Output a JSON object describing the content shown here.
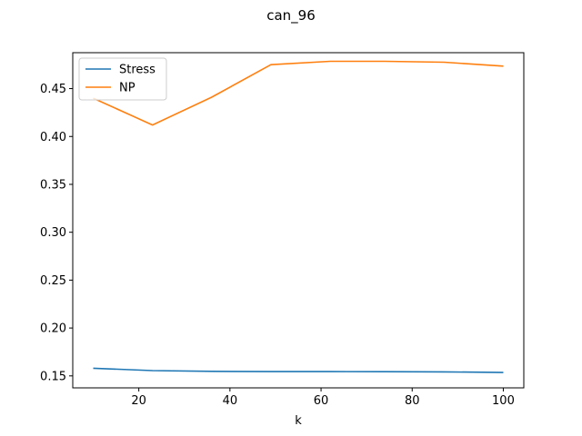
{
  "chart_data": {
    "type": "line",
    "title": "can_96",
    "xlabel": "k",
    "ylabel": "",
    "xlim": [
      5.5,
      104.5
    ],
    "ylim": [
      0.1375,
      0.4875
    ],
    "xticks": [
      20,
      40,
      60,
      80,
      100
    ],
    "xtick_labels": [
      "20",
      "40",
      "60",
      "80",
      "100"
    ],
    "yticks": [
      0.15,
      0.2,
      0.25,
      0.3,
      0.35,
      0.4,
      0.45
    ],
    "ytick_labels": [
      "0.15",
      "0.20",
      "0.25",
      "0.30",
      "0.35",
      "0.40",
      "0.45"
    ],
    "grid": false,
    "legend_position": "top-left",
    "x": [
      10,
      23,
      36,
      49,
      62,
      74,
      87,
      100
    ],
    "series": [
      {
        "name": "Stress",
        "color": "#1f77b4",
        "values": [
          0.158,
          0.1555,
          0.1548,
          0.1545,
          0.1545,
          0.1544,
          0.1542,
          0.1535
        ]
      },
      {
        "name": "NP",
        "color": "#ff7f0e",
        "values": [
          0.44,
          0.412,
          0.441,
          0.475,
          0.4785,
          0.4785,
          0.4775,
          0.4735
        ]
      }
    ]
  }
}
